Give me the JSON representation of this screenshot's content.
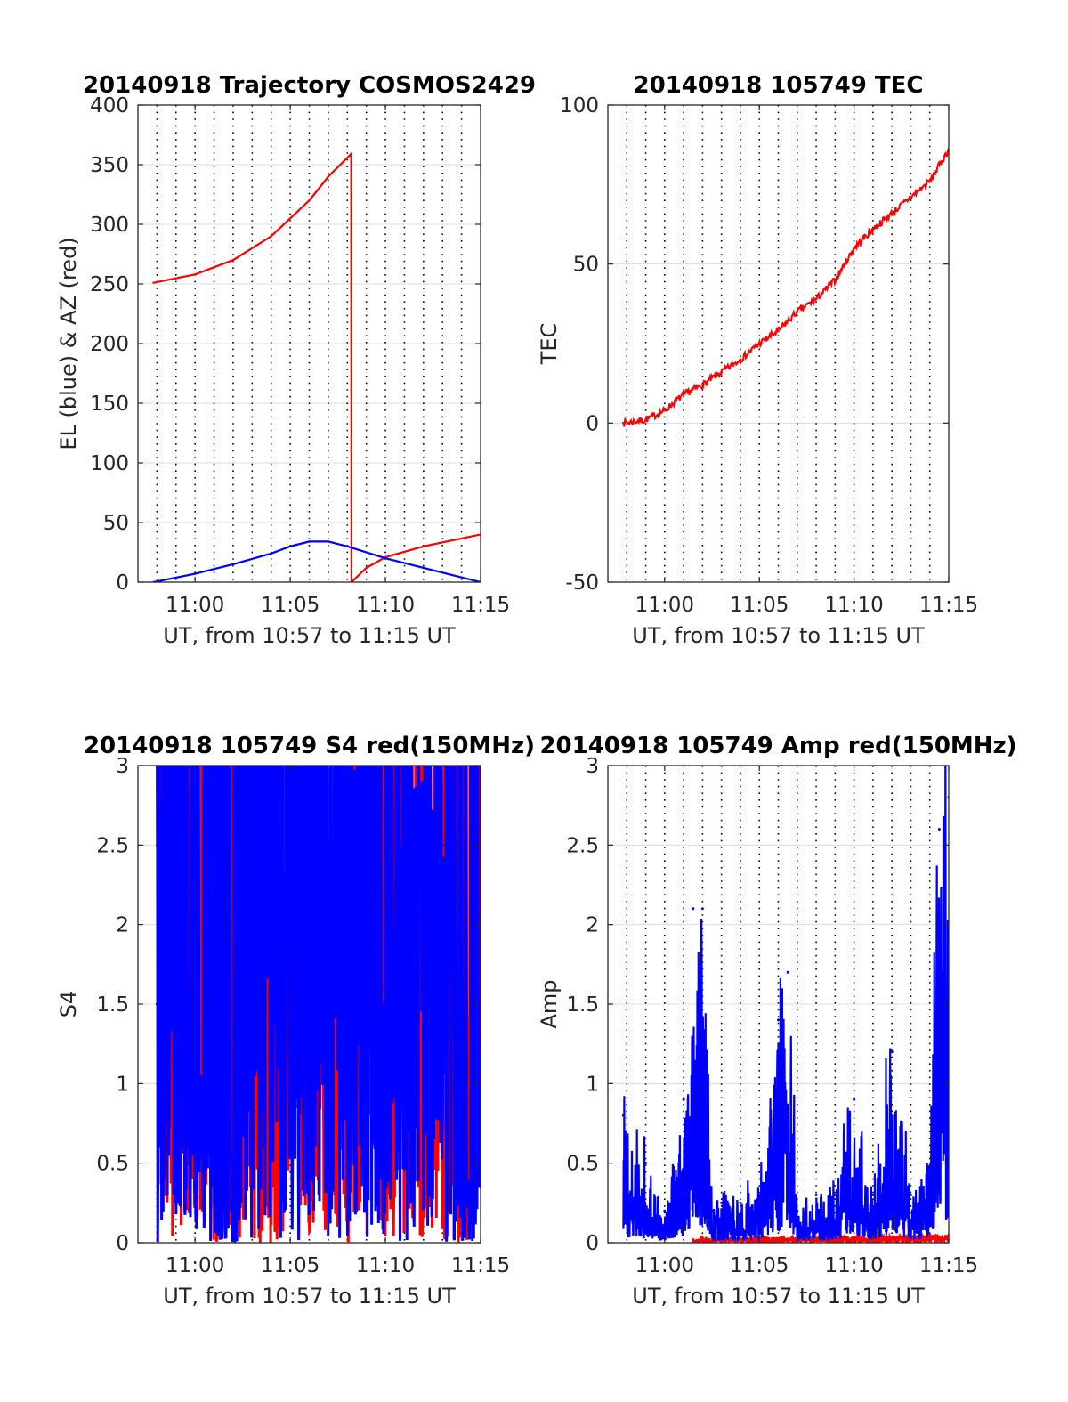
{
  "colors": {
    "red": "#ff0000",
    "blue": "#0000ff",
    "axis": "#262626",
    "grid": "#dcdcdc"
  },
  "chart_data": [
    {
      "type": "line",
      "title": "20140918 Trajectory COSMOS2429",
      "xlabel": "UT, from 10:57 to 11:15 UT",
      "ylabel": "EL (blue) & AZ (red)",
      "xlim": [
        10.95,
        11.25
      ],
      "ylim": [
        0,
        400
      ],
      "xticks": [
        "11:00",
        "11:05",
        "11:10",
        "11:15"
      ],
      "yticks": [
        "0",
        "50",
        "100",
        "150",
        "200",
        "250",
        "300",
        "350",
        "400"
      ],
      "grid": true,
      "series": [
        {
          "color": "#ff0000",
          "x": [
            "10:57:49",
            "11:00",
            "11:02",
            "11:04",
            "11:06",
            "11:07",
            "11:08:12",
            "11:08:13",
            "11:09",
            "11:10",
            "11:12",
            "11:15"
          ],
          "y": [
            251,
            258,
            270,
            290,
            320,
            340,
            359,
            0,
            12,
            21,
            30,
            40
          ]
        },
        {
          "color": "#0000ff",
          "x": [
            "10:57:49",
            "11:00",
            "11:02",
            "11:04",
            "11:05",
            "11:06",
            "11:07",
            "11:08",
            "11:10",
            "11:12",
            "11:15"
          ],
          "y": [
            0,
            7,
            15,
            24,
            30,
            34,
            34,
            30,
            20,
            12,
            0
          ]
        }
      ]
    },
    {
      "type": "line",
      "title": "20140918 105749 TEC",
      "xlabel": "UT, from 10:57 to 11:15 UT",
      "ylabel": "TEC",
      "xlim": [
        10.95,
        11.25
      ],
      "ylim": [
        -50,
        100
      ],
      "xticks": [
        "11:00",
        "11:05",
        "11:10",
        "11:15"
      ],
      "yticks": [
        "-50",
        "0",
        "50",
        "100"
      ],
      "grid": true,
      "series": [
        {
          "color": "#ff0000",
          "x": [
            "10:57:49",
            "10:59",
            "11:00",
            "11:01",
            "11:02",
            "11:03",
            "11:04",
            "11:05",
            "11:06",
            "11:07",
            "11:08",
            "11:09",
            "11:10",
            "11:11",
            "11:12",
            "11:13",
            "11:14",
            "11:15"
          ],
          "y": [
            0,
            1,
            4,
            9,
            12,
            16,
            20,
            25,
            29,
            35,
            39,
            45,
            55,
            61,
            66,
            71,
            76,
            86
          ]
        }
      ]
    },
    {
      "type": "line",
      "title": "20140918 105749 S4 red(150MHz)",
      "xlabel": "UT, from 10:57 to 11:15 UT",
      "ylabel": "S4",
      "xlim": [
        10.95,
        11.25
      ],
      "ylim": [
        0,
        3
      ],
      "xticks": [
        "11:00",
        "11:05",
        "11:10",
        "11:15"
      ],
      "yticks": [
        "0",
        "0.5",
        "1",
        "1.5",
        "2",
        "2.5",
        "3"
      ],
      "grid": true,
      "series": [
        {
          "color": "#ff0000",
          "x": [
            "10:58",
            "10:59",
            "11:00",
            "11:01",
            "11:02",
            "11:03",
            "11:04",
            "11:05",
            "11:06",
            "11:07",
            "11:08",
            "11:09",
            "11:10",
            "11:11",
            "11:12",
            "11:13",
            "11:14",
            "11:15"
          ],
          "y": [
            2.5,
            3.0,
            1.4,
            3.0,
            0.8,
            3.0,
            0.4,
            3.0,
            0.5,
            3.0,
            0.9,
            3.0,
            0.6,
            3.0,
            0.3,
            3.0,
            0.4,
            3.0
          ]
        },
        {
          "color": "#0000ff",
          "x": [
            "10:58",
            "10:59",
            "11:00",
            "11:01",
            "11:02",
            "11:03",
            "11:04",
            "11:05",
            "11:06",
            "11:07",
            "11:08",
            "11:09",
            "11:10",
            "11:11",
            "11:12",
            "11:13",
            "11:14",
            "11:15"
          ],
          "y": [
            1.5,
            1.3,
            1.1,
            0.9,
            0.5,
            2.8,
            2.9,
            2.0,
            2.9,
            2.5,
            3.0,
            2.9,
            1.2,
            2.8,
            2.9,
            2.5,
            0.4,
            0.35
          ]
        }
      ]
    },
    {
      "type": "line",
      "title": "20140918 105749 Amp red(150MHz)",
      "xlabel": "UT, from 10:57 to 11:15 UT",
      "ylabel": "Amp",
      "xlim": [
        10.95,
        11.25
      ],
      "ylim": [
        0,
        3
      ],
      "xticks": [
        "11:00",
        "11:05",
        "11:10",
        "11:15"
      ],
      "yticks": [
        "0",
        "0.5",
        "1",
        "1.5",
        "2",
        "2.5",
        "3"
      ],
      "grid": true,
      "series": [
        {
          "color": "#ff0000",
          "x": [
            "11:01:30",
            "11:02",
            "11:14",
            "11:15"
          ],
          "y": [
            0.02,
            0.03,
            0.05,
            0.05
          ]
        },
        {
          "color": "#0000ff",
          "x": [
            "10:57:49",
            "10:58",
            "10:59",
            "11:00",
            "11:01",
            "11:01:30",
            "11:02",
            "11:02:30",
            "11:03",
            "11:04",
            "11:05",
            "11:06",
            "11:06:30",
            "11:07",
            "11:08",
            "11:09",
            "11:10",
            "11:11",
            "11:12",
            "11:13",
            "11:14",
            "11:14:30",
            "11:15"
          ],
          "y": [
            0.8,
            0.6,
            0.5,
            0.2,
            0.9,
            2.1,
            2.1,
            0.2,
            0.25,
            0.25,
            0.3,
            1.4,
            1.7,
            0.2,
            0.3,
            0.3,
            0.9,
            0.3,
            1.2,
            0.3,
            0.4,
            2.6,
            2.8
          ]
        }
      ]
    }
  ]
}
